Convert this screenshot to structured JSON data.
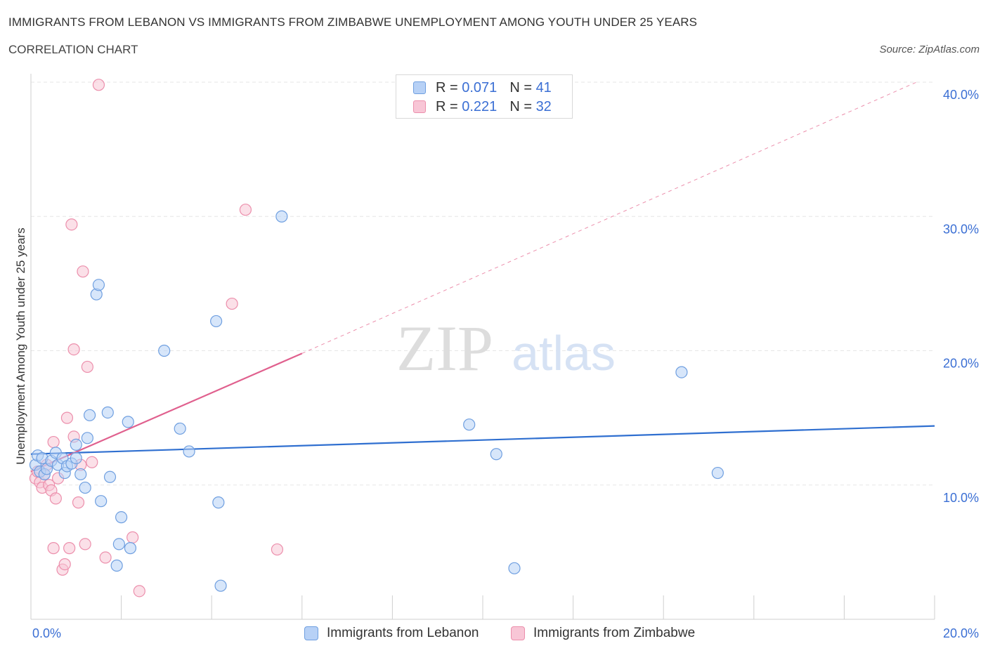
{
  "title": "IMMIGRANTS FROM LEBANON VS IMMIGRANTS FROM ZIMBABWE UNEMPLOYMENT AMONG YOUTH UNDER 25 YEARS",
  "subtitle": "CORRELATION CHART",
  "source": "Source: ZipAtlas.com",
  "watermark": {
    "zip": "ZIP",
    "atlas": "atlas"
  },
  "colors": {
    "lebanon_fill": "#b7d1f6",
    "lebanon_stroke": "#6f9fe0",
    "lebanon_line": "#2f6fd0",
    "zimbabwe_fill": "#f8c6d6",
    "zimbabwe_stroke": "#ec8fac",
    "zimbabwe_line": "#e0608e",
    "grid": "#e6e6e6",
    "tick_label": "#3b6fd4"
  },
  "legend": {
    "lebanon": {
      "r_label": "R =",
      "r_value": "0.071",
      "n_label": "N =",
      "n_value": "41"
    },
    "zimbabwe": {
      "r_label": "R =",
      "r_value": "0.221",
      "n_label": "N =",
      "n_value": "32"
    }
  },
  "chart_data": {
    "type": "scatter",
    "title": "IMMIGRANTS FROM LEBANON VS IMMIGRANTS FROM ZIMBABWE UNEMPLOYMENT AMONG YOUTH UNDER 25 YEARS",
    "xlabel": "",
    "ylabel": "Unemployment Among Youth under 25 years",
    "xlim": [
      0,
      20
    ],
    "ylim": [
      0,
      40
    ],
    "x_tick_labels": [
      "0.0%",
      "20.0%"
    ],
    "y_ticks": [
      10,
      20,
      30,
      40
    ],
    "y_tick_labels": [
      "10.0%",
      "20.0%",
      "30.0%",
      "40.0%"
    ],
    "grid": true,
    "legend_position": "top-center",
    "series": [
      {
        "name": "Immigrants from Lebanon",
        "r": 0.071,
        "n": 41,
        "trend": {
          "x": [
            0,
            20
          ],
          "y": [
            12.3,
            14.4
          ],
          "dashed_extension": false
        },
        "points": [
          [
            0.1,
            11.5
          ],
          [
            0.15,
            12.2
          ],
          [
            0.2,
            11.0
          ],
          [
            0.25,
            12.0
          ],
          [
            0.3,
            10.8
          ],
          [
            0.35,
            11.2
          ],
          [
            0.45,
            11.8
          ],
          [
            0.55,
            12.4
          ],
          [
            0.6,
            11.5
          ],
          [
            0.7,
            12.0
          ],
          [
            0.75,
            10.9
          ],
          [
            0.8,
            11.4
          ],
          [
            0.9,
            11.6
          ],
          [
            1.0,
            12.0
          ],
          [
            1.0,
            13.0
          ],
          [
            1.1,
            10.8
          ],
          [
            1.2,
            9.8
          ],
          [
            1.25,
            13.5
          ],
          [
            1.3,
            15.2
          ],
          [
            1.45,
            24.2
          ],
          [
            1.5,
            24.9
          ],
          [
            1.55,
            8.8
          ],
          [
            1.7,
            15.4
          ],
          [
            1.75,
            10.6
          ],
          [
            1.9,
            4.0
          ],
          [
            1.95,
            5.6
          ],
          [
            2.0,
            7.6
          ],
          [
            2.15,
            14.7
          ],
          [
            2.2,
            5.3
          ],
          [
            2.95,
            20.0
          ],
          [
            3.3,
            14.2
          ],
          [
            3.5,
            12.5
          ],
          [
            4.1,
            22.2
          ],
          [
            4.15,
            8.7
          ],
          [
            4.2,
            2.5
          ],
          [
            5.55,
            30.0
          ],
          [
            9.7,
            14.5
          ],
          [
            10.3,
            12.3
          ],
          [
            10.7,
            3.8
          ],
          [
            14.4,
            18.4
          ],
          [
            15.2,
            10.9
          ]
        ]
      },
      {
        "name": "Immigrants from Zimbabwe",
        "r": 0.221,
        "n": 32,
        "trend": {
          "x": [
            0,
            6
          ],
          "y": [
            11.0,
            19.8
          ],
          "dashed_extension_to": [
            19.6,
            40.0
          ]
        },
        "points": [
          [
            0.1,
            10.5
          ],
          [
            0.15,
            11.0
          ],
          [
            0.2,
            10.2
          ],
          [
            0.25,
            9.8
          ],
          [
            0.3,
            10.8
          ],
          [
            0.35,
            11.5
          ],
          [
            0.4,
            10.0
          ],
          [
            0.45,
            9.6
          ],
          [
            0.5,
            13.2
          ],
          [
            0.55,
            9.0
          ],
          [
            0.5,
            5.3
          ],
          [
            0.6,
            10.5
          ],
          [
            0.7,
            3.7
          ],
          [
            0.75,
            4.1
          ],
          [
            0.8,
            15.0
          ],
          [
            0.85,
            5.3
          ],
          [
            0.9,
            29.4
          ],
          [
            0.95,
            13.6
          ],
          [
            0.95,
            20.1
          ],
          [
            1.05,
            8.7
          ],
          [
            1.1,
            11.5
          ],
          [
            1.15,
            25.9
          ],
          [
            1.2,
            5.6
          ],
          [
            1.25,
            18.8
          ],
          [
            1.35,
            11.7
          ],
          [
            1.5,
            39.8
          ],
          [
            1.65,
            4.6
          ],
          [
            2.25,
            6.1
          ],
          [
            2.4,
            2.1
          ],
          [
            4.45,
            23.5
          ],
          [
            4.75,
            30.5
          ],
          [
            5.45,
            5.2
          ]
        ]
      }
    ]
  },
  "bottom_legend": {
    "lebanon_label": "Immigrants from Lebanon",
    "zimbabwe_label": "Immigrants from Zimbabwe"
  }
}
